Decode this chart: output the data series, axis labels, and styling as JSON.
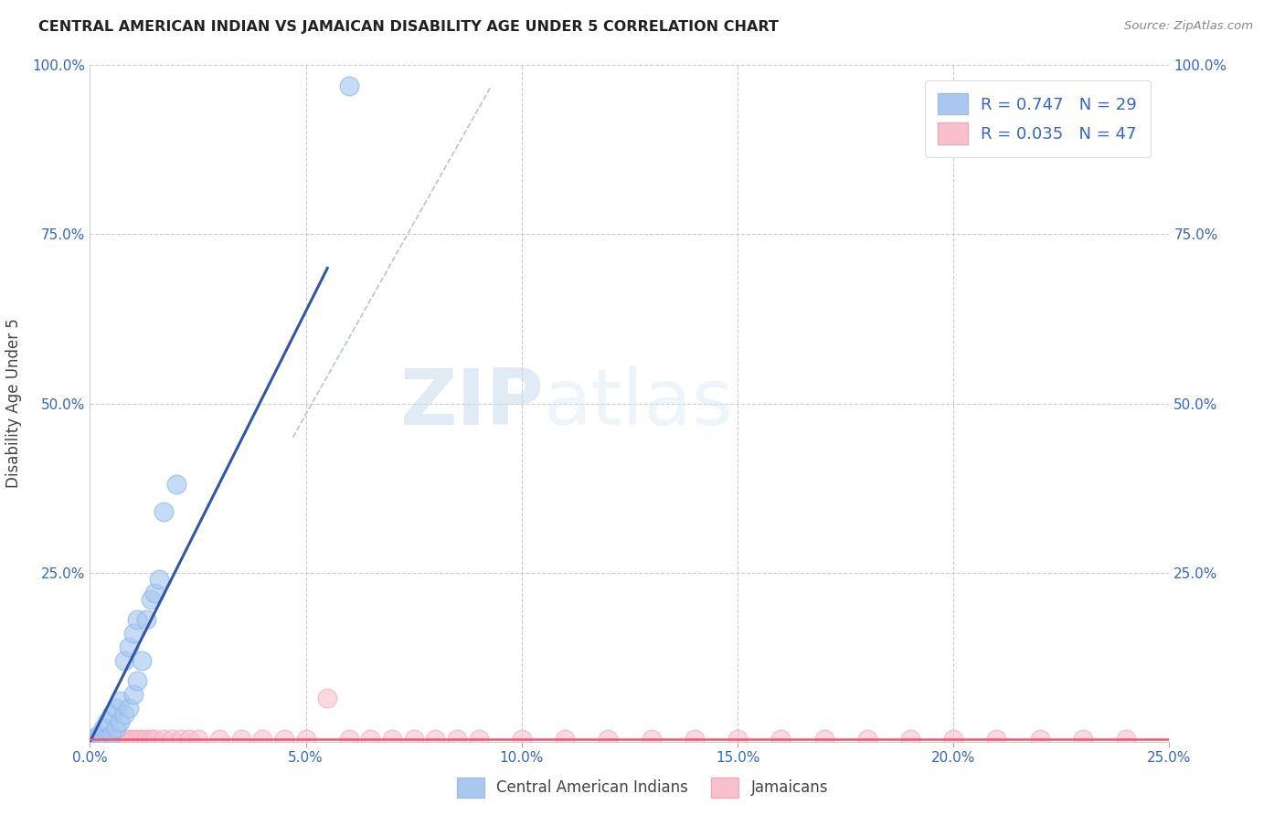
{
  "title": "CENTRAL AMERICAN INDIAN VS JAMAICAN DISABILITY AGE UNDER 5 CORRELATION CHART",
  "source": "Source: ZipAtlas.com",
  "ylabel": "Disability Age Under 5",
  "xlim": [
    0.0,
    0.25
  ],
  "ylim": [
    0.0,
    1.0
  ],
  "blue_R": 0.747,
  "blue_N": 29,
  "pink_R": 0.035,
  "pink_N": 47,
  "blue_color": "#8BB8E8",
  "pink_color": "#F4A8B8",
  "blue_fill_color": "#A8C8F0",
  "pink_fill_color": "#F8C0CC",
  "blue_line_color": "#3355AA",
  "pink_line_color": "#EE5577",
  "legend_label_blue": "Central American Indians",
  "legend_label_pink": "Jamaicans",
  "watermark_zip": "ZIP",
  "watermark_atlas": "atlas",
  "blue_points_x": [
    0.001,
    0.002,
    0.002,
    0.003,
    0.003,
    0.004,
    0.004,
    0.005,
    0.005,
    0.006,
    0.006,
    0.007,
    0.007,
    0.008,
    0.008,
    0.009,
    0.009,
    0.01,
    0.01,
    0.011,
    0.011,
    0.012,
    0.013,
    0.014,
    0.015,
    0.016,
    0.017,
    0.02,
    0.06
  ],
  "blue_points_y": [
    0.005,
    0.005,
    0.01,
    0.005,
    0.02,
    0.005,
    0.03,
    0.01,
    0.04,
    0.02,
    0.05,
    0.03,
    0.06,
    0.04,
    0.12,
    0.05,
    0.14,
    0.07,
    0.16,
    0.09,
    0.18,
    0.12,
    0.18,
    0.21,
    0.22,
    0.24,
    0.34,
    0.38,
    0.97
  ],
  "pink_points_x": [
    0.002,
    0.003,
    0.004,
    0.005,
    0.006,
    0.007,
    0.008,
    0.009,
    0.01,
    0.011,
    0.012,
    0.013,
    0.014,
    0.015,
    0.017,
    0.019,
    0.021,
    0.023,
    0.025,
    0.03,
    0.035,
    0.04,
    0.045,
    0.05,
    0.06,
    0.065,
    0.07,
    0.075,
    0.08,
    0.09,
    0.1,
    0.11,
    0.12,
    0.13,
    0.14,
    0.15,
    0.16,
    0.17,
    0.18,
    0.19,
    0.2,
    0.21,
    0.22,
    0.23,
    0.24,
    0.055,
    0.085
  ],
  "pink_points_y": [
    0.003,
    0.003,
    0.003,
    0.003,
    0.003,
    0.003,
    0.003,
    0.003,
    0.003,
    0.003,
    0.003,
    0.003,
    0.003,
    0.003,
    0.003,
    0.003,
    0.003,
    0.003,
    0.003,
    0.003,
    0.003,
    0.003,
    0.003,
    0.003,
    0.003,
    0.003,
    0.003,
    0.003,
    0.003,
    0.003,
    0.003,
    0.003,
    0.003,
    0.003,
    0.003,
    0.003,
    0.003,
    0.003,
    0.003,
    0.003,
    0.003,
    0.003,
    0.003,
    0.003,
    0.003,
    0.065,
    0.003
  ],
  "blue_line_x": [
    0.0,
    0.055
  ],
  "blue_line_y": [
    0.0,
    0.7
  ],
  "pink_line_x": [
    0.0,
    0.25
  ],
  "pink_line_y": [
    0.003,
    0.003
  ],
  "diag_line_x": [
    0.047,
    0.093
  ],
  "diag_line_y": [
    0.45,
    0.97
  ]
}
